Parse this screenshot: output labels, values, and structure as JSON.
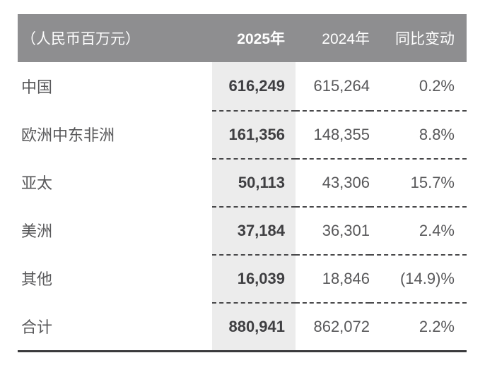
{
  "table": {
    "unit_label": "（人民币百万元）",
    "columns": [
      {
        "label": "2025年"
      },
      {
        "label": "2024年"
      },
      {
        "label": "同比变动"
      }
    ],
    "rows": [
      {
        "region": "中国",
        "y2025": "616,249",
        "y2024": "615,264",
        "change": "0.2%"
      },
      {
        "region": "欧洲中东非洲",
        "y2025": "161,356",
        "y2024": "148,355",
        "change": "8.8%"
      },
      {
        "region": "亚太",
        "y2025": "50,113",
        "y2024": "43,306",
        "change": "15.7%"
      },
      {
        "region": "美洲",
        "y2025": "37,184",
        "y2024": "36,301",
        "change": "2.4%"
      },
      {
        "region": "其他",
        "y2025": "16,039",
        "y2024": "18,846",
        "change": "(14.9)%"
      },
      {
        "region": "合计",
        "y2025": "880,941",
        "y2024": "862,072",
        "change": "2.2%"
      }
    ],
    "colors": {
      "header_bg": "#8e8e90",
      "highlight_col_bg": "#ececec",
      "text_bold": "#3f3f42",
      "text_regular": "#58585a",
      "dash_rule": "#48484a",
      "bottom_rule": "#3a3a3c"
    }
  }
}
